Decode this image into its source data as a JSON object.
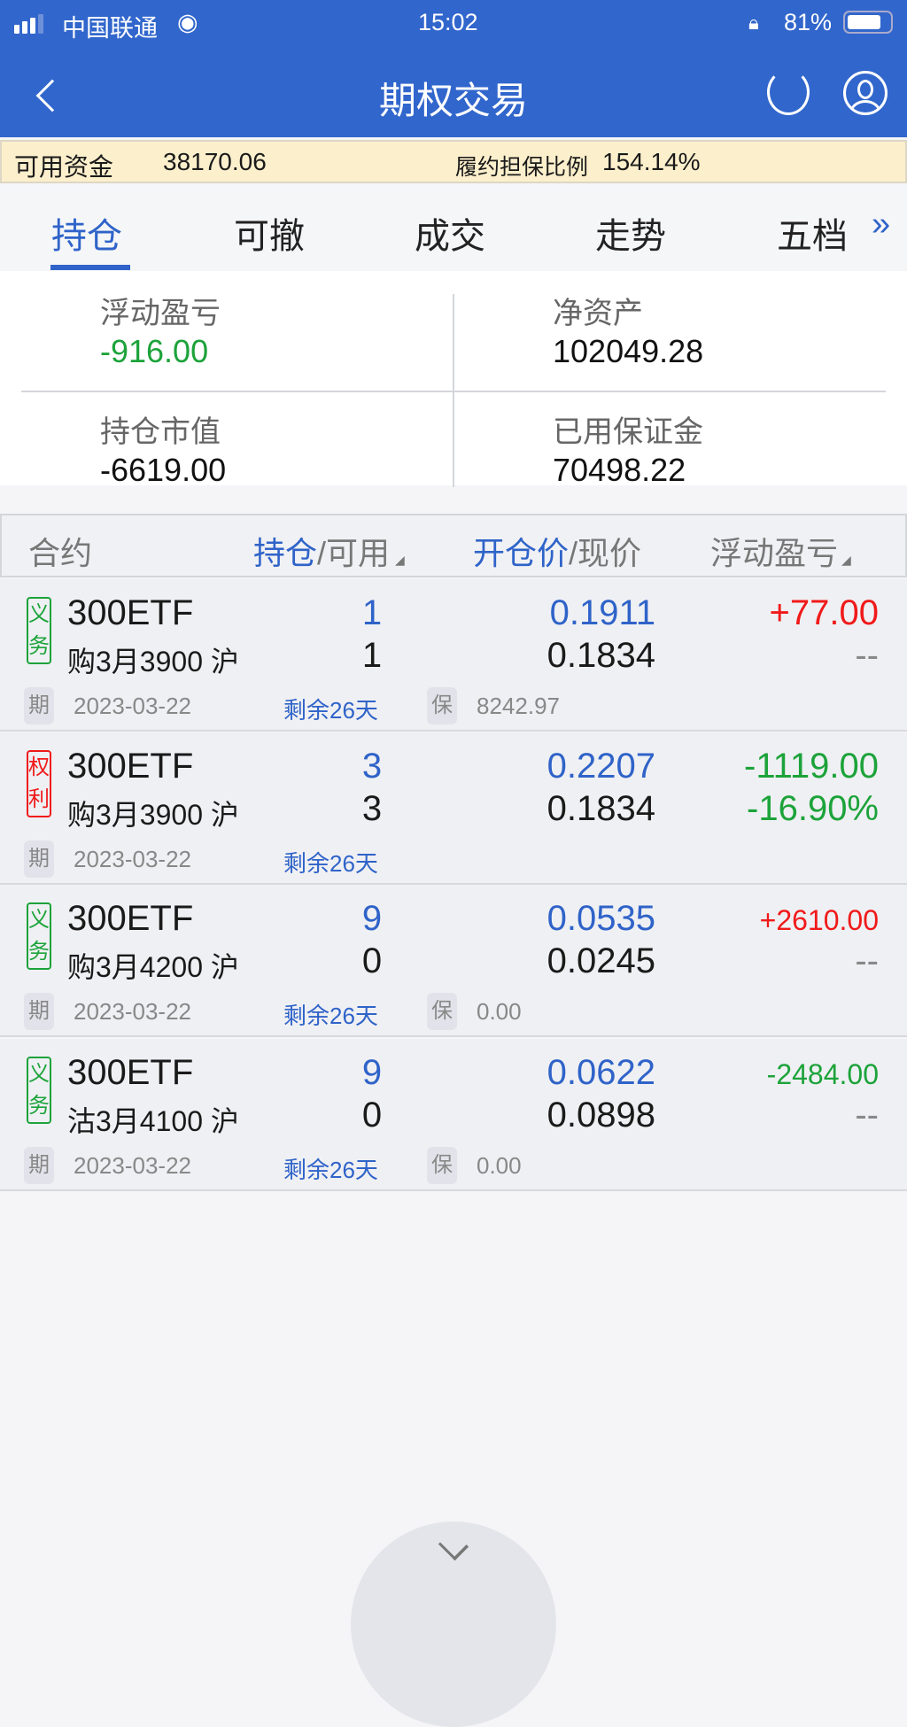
{
  "status": {
    "carrier": "中国联通",
    "time": "15:02",
    "battery": "81%"
  },
  "nav": {
    "title": "期权交易",
    "back_icon": "chevron-left-icon",
    "refresh_icon": "refresh-icon",
    "user_icon": "user-icon"
  },
  "funds": {
    "available_label": "可用资金",
    "available_value": "38170.06",
    "ratio_label": "履约担保比例",
    "ratio_value": "154.14%"
  },
  "tabs": [
    {
      "label": "持仓",
      "active": true
    },
    {
      "label": "可撤"
    },
    {
      "label": "成交"
    },
    {
      "label": "走势"
    },
    {
      "label": "五档"
    }
  ],
  "summary": {
    "float_pl_label": "浮动盈亏",
    "float_pl": "-916.00",
    "net_assets_label": "净资产",
    "net_assets": "102049.28",
    "market_value_label": "持仓市值",
    "market_value": "-6619.00",
    "margin_used_label": "已用保证金",
    "margin_used": "70498.22"
  },
  "table_header": {
    "contract": "合约",
    "position": "持仓",
    "available": "/可用",
    "open_price": "开仓价",
    "current_price": "/现价",
    "float_pl": "浮动盈亏"
  },
  "rows": [
    {
      "badge": [
        "义",
        "务"
      ],
      "name": "300ETF",
      "detail": "购3月3900 沪",
      "position": "1",
      "available": "1",
      "open": "0.1911",
      "current": "0.1834",
      "pl": "+77.00",
      "pl2": "--",
      "date_tag": "期",
      "date": "2023-03-22",
      "remain": "剩余26天",
      "margin_tag": "保",
      "margin": "8242.97"
    },
    {
      "badge": [
        "权",
        "利"
      ],
      "name": "300ETF",
      "detail": "购3月3900 沪",
      "position": "3",
      "available": "3",
      "open": "0.2207",
      "current": "0.1834",
      "pl": "-1119.00",
      "pl2": "-16.90%",
      "date_tag": "期",
      "date": "2023-03-22",
      "remain": "剩余26天"
    },
    {
      "badge": [
        "义",
        "务"
      ],
      "name": "300ETF",
      "detail": "购3月4200 沪",
      "position": "9",
      "available": "0",
      "open": "0.0535",
      "current": "0.0245",
      "pl": "+2610.00",
      "pl2": "--",
      "date_tag": "期",
      "date": "2023-03-22",
      "remain": "剩余26天",
      "margin_tag": "保",
      "margin": "0.00"
    },
    {
      "badge": [
        "义",
        "务"
      ],
      "name": "300ETF",
      "detail": "沽3月4100 沪",
      "position": "9",
      "available": "0",
      "open": "0.0622",
      "current": "0.0898",
      "pl": "-2484.00",
      "pl2": "--",
      "date_tag": "期",
      "date": "2023-03-22",
      "remain": "剩余26天",
      "margin_tag": "保",
      "margin": "0.00"
    }
  ],
  "colors": {
    "brand": "#3166cc",
    "up": "#f01a1a",
    "down": "#1ca33a"
  }
}
